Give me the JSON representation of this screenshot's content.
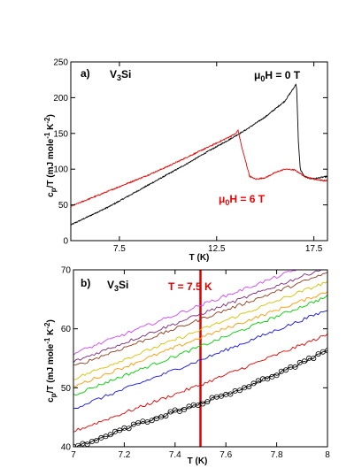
{
  "chart_data": [
    {
      "type": "line",
      "panel_label": "a)",
      "sample_label": "V3Si",
      "xlabel": "T (K)",
      "ylabel": "cp/T (mJ mole-1 K-2)",
      "xlim": [
        5.0,
        18.2
      ],
      "ylim": [
        0,
        250
      ],
      "xticks": [
        7.5,
        12.5,
        17.5
      ],
      "xtick_labels": [
        "7.5",
        "12.5",
        "17.5"
      ],
      "yticks": [
        0,
        50,
        100,
        150,
        200,
        250
      ],
      "ytick_labels": [
        "0",
        "50",
        "100",
        "150",
        "200",
        "250"
      ],
      "grid": false,
      "series": [
        {
          "name": "μ0H = 0 T",
          "color": "#000000",
          "x": [
            5.0,
            6.0,
            7.0,
            8.0,
            9.0,
            10.0,
            11.0,
            12.0,
            13.0,
            14.0,
            15.0,
            16.0,
            16.5,
            16.58,
            16.62,
            16.7,
            16.8,
            17.0,
            17.3,
            17.6,
            18.0,
            18.2
          ],
          "y": [
            22,
            35,
            48,
            63,
            78,
            93,
            108,
            124,
            139,
            155,
            173,
            195,
            215,
            220,
            210,
            140,
            100,
            90,
            87,
            87,
            89,
            90
          ]
        },
        {
          "name": "μ0H = 6 T",
          "color": "#ee0000",
          "x": [
            5.0,
            6.0,
            7.0,
            8.0,
            9.0,
            10.0,
            11.0,
            12.0,
            13.0,
            13.5,
            13.6,
            13.8,
            14.2,
            14.5,
            15.0,
            15.5,
            16.0,
            16.5,
            16.8,
            17.0,
            17.5,
            18.0,
            18.2
          ],
          "y": [
            48,
            59,
            70,
            81,
            92,
            104,
            117,
            130,
            143,
            150,
            155,
            130,
            90,
            86,
            88,
            95,
            100,
            99,
            94,
            90,
            86,
            84,
            84
          ]
        }
      ],
      "annotations": [
        "μ0H = 0 T",
        "μ0H = 6 T"
      ]
    },
    {
      "type": "line",
      "panel_label": "b)",
      "sample_label": "V3Si",
      "xlabel": "T (K)",
      "ylabel": "cp/T (mJ mole-1 K-2)",
      "xlim": [
        7.0,
        8.0
      ],
      "ylim": [
        40,
        70
      ],
      "xticks": [
        7.0,
        7.2,
        7.4,
        7.6,
        7.8,
        8.0
      ],
      "xtick_labels": [
        "7",
        "7.2",
        "7.4",
        "7.6",
        "7.8",
        "8"
      ],
      "yticks": [
        40,
        50,
        60,
        70
      ],
      "ytick_labels": [
        "40",
        "50",
        "60",
        "70"
      ],
      "grid": false,
      "marker_line": {
        "x": 7.5,
        "color": "#e00000",
        "label": "T = 7.5 K"
      },
      "series": [
        {
          "color": "#000000",
          "markers": "open-circle",
          "x": [
            7.0,
            7.1,
            7.2,
            7.3,
            7.4,
            7.5,
            7.6,
            7.7,
            7.8,
            7.9,
            8.0
          ],
          "y": [
            39.8,
            41.3,
            43.0,
            44.6,
            46.0,
            47.4,
            48.9,
            50.5,
            52.3,
            54.2,
            56.2
          ]
        },
        {
          "color": "#e00000",
          "x": [
            7.0,
            7.5,
            8.0
          ],
          "y": [
            42.6,
            50.5,
            59.0
          ]
        },
        {
          "color": "#1010ee",
          "x": [
            7.0,
            7.5,
            8.0
          ],
          "y": [
            46.5,
            54.7,
            63.2
          ]
        },
        {
          "color": "#00cc00",
          "x": [
            7.0,
            7.5,
            8.0
          ],
          "y": [
            48.8,
            57.0,
            65.5
          ]
        },
        {
          "color": "#ff9900",
          "x": [
            7.0,
            7.5,
            8.0
          ],
          "y": [
            50.2,
            58.5,
            66.3
          ]
        },
        {
          "color": "#d4c000",
          "x": [
            7.0,
            7.5,
            8.0
          ],
          "y": [
            51.5,
            59.8,
            68.0
          ]
        },
        {
          "color": "#8b3a1a",
          "x": [
            7.0,
            7.5,
            8.0
          ],
          "y": [
            53.6,
            61.6,
            69.5
          ]
        },
        {
          "color": "#7a2a7a",
          "x": [
            7.0,
            7.5,
            8.0
          ],
          "y": [
            54.4,
            62.5,
            70.5
          ]
        },
        {
          "color": "#cc44ff",
          "x": [
            7.0,
            7.5,
            8.0
          ],
          "y": [
            55.8,
            64.0,
            72.0
          ]
        }
      ]
    }
  ]
}
